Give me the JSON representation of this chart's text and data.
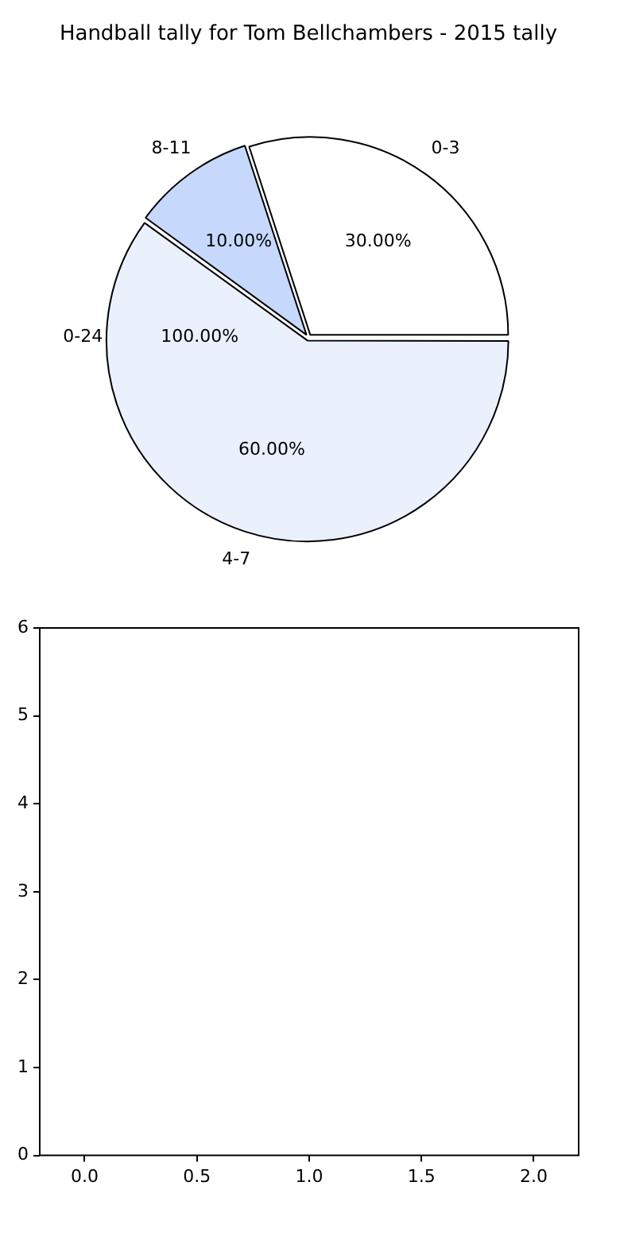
{
  "chart_data": [
    {
      "type": "pie",
      "title": "Handball tally for Tom Bellchambers - 2015 tally",
      "categories": [
        "0-3",
        "4-7",
        "8-11"
      ],
      "values": [
        30,
        60,
        10
      ],
      "colors": [
        "#ffffff",
        "#eaf1fd",
        "#c6d9fd"
      ],
      "value_labels": [
        "30.00%",
        "60.00%",
        "10.00%"
      ],
      "annotations": [
        "0-24",
        "100.00%"
      ]
    },
    {
      "type": "scatter",
      "xlim": [
        -0.2,
        2.2
      ],
      "ylim": [
        0,
        6
      ],
      "xticks": [
        {
          "value": 0,
          "label": "0.0"
        },
        {
          "value": 0.5,
          "label": "0.5"
        },
        {
          "value": 1,
          "label": "1.0"
        },
        {
          "value": 1.5,
          "label": "1.5"
        },
        {
          "value": 2,
          "label": "2.0"
        }
      ],
      "yticks": [
        0,
        1,
        2,
        3,
        4,
        5,
        6
      ]
    }
  ]
}
